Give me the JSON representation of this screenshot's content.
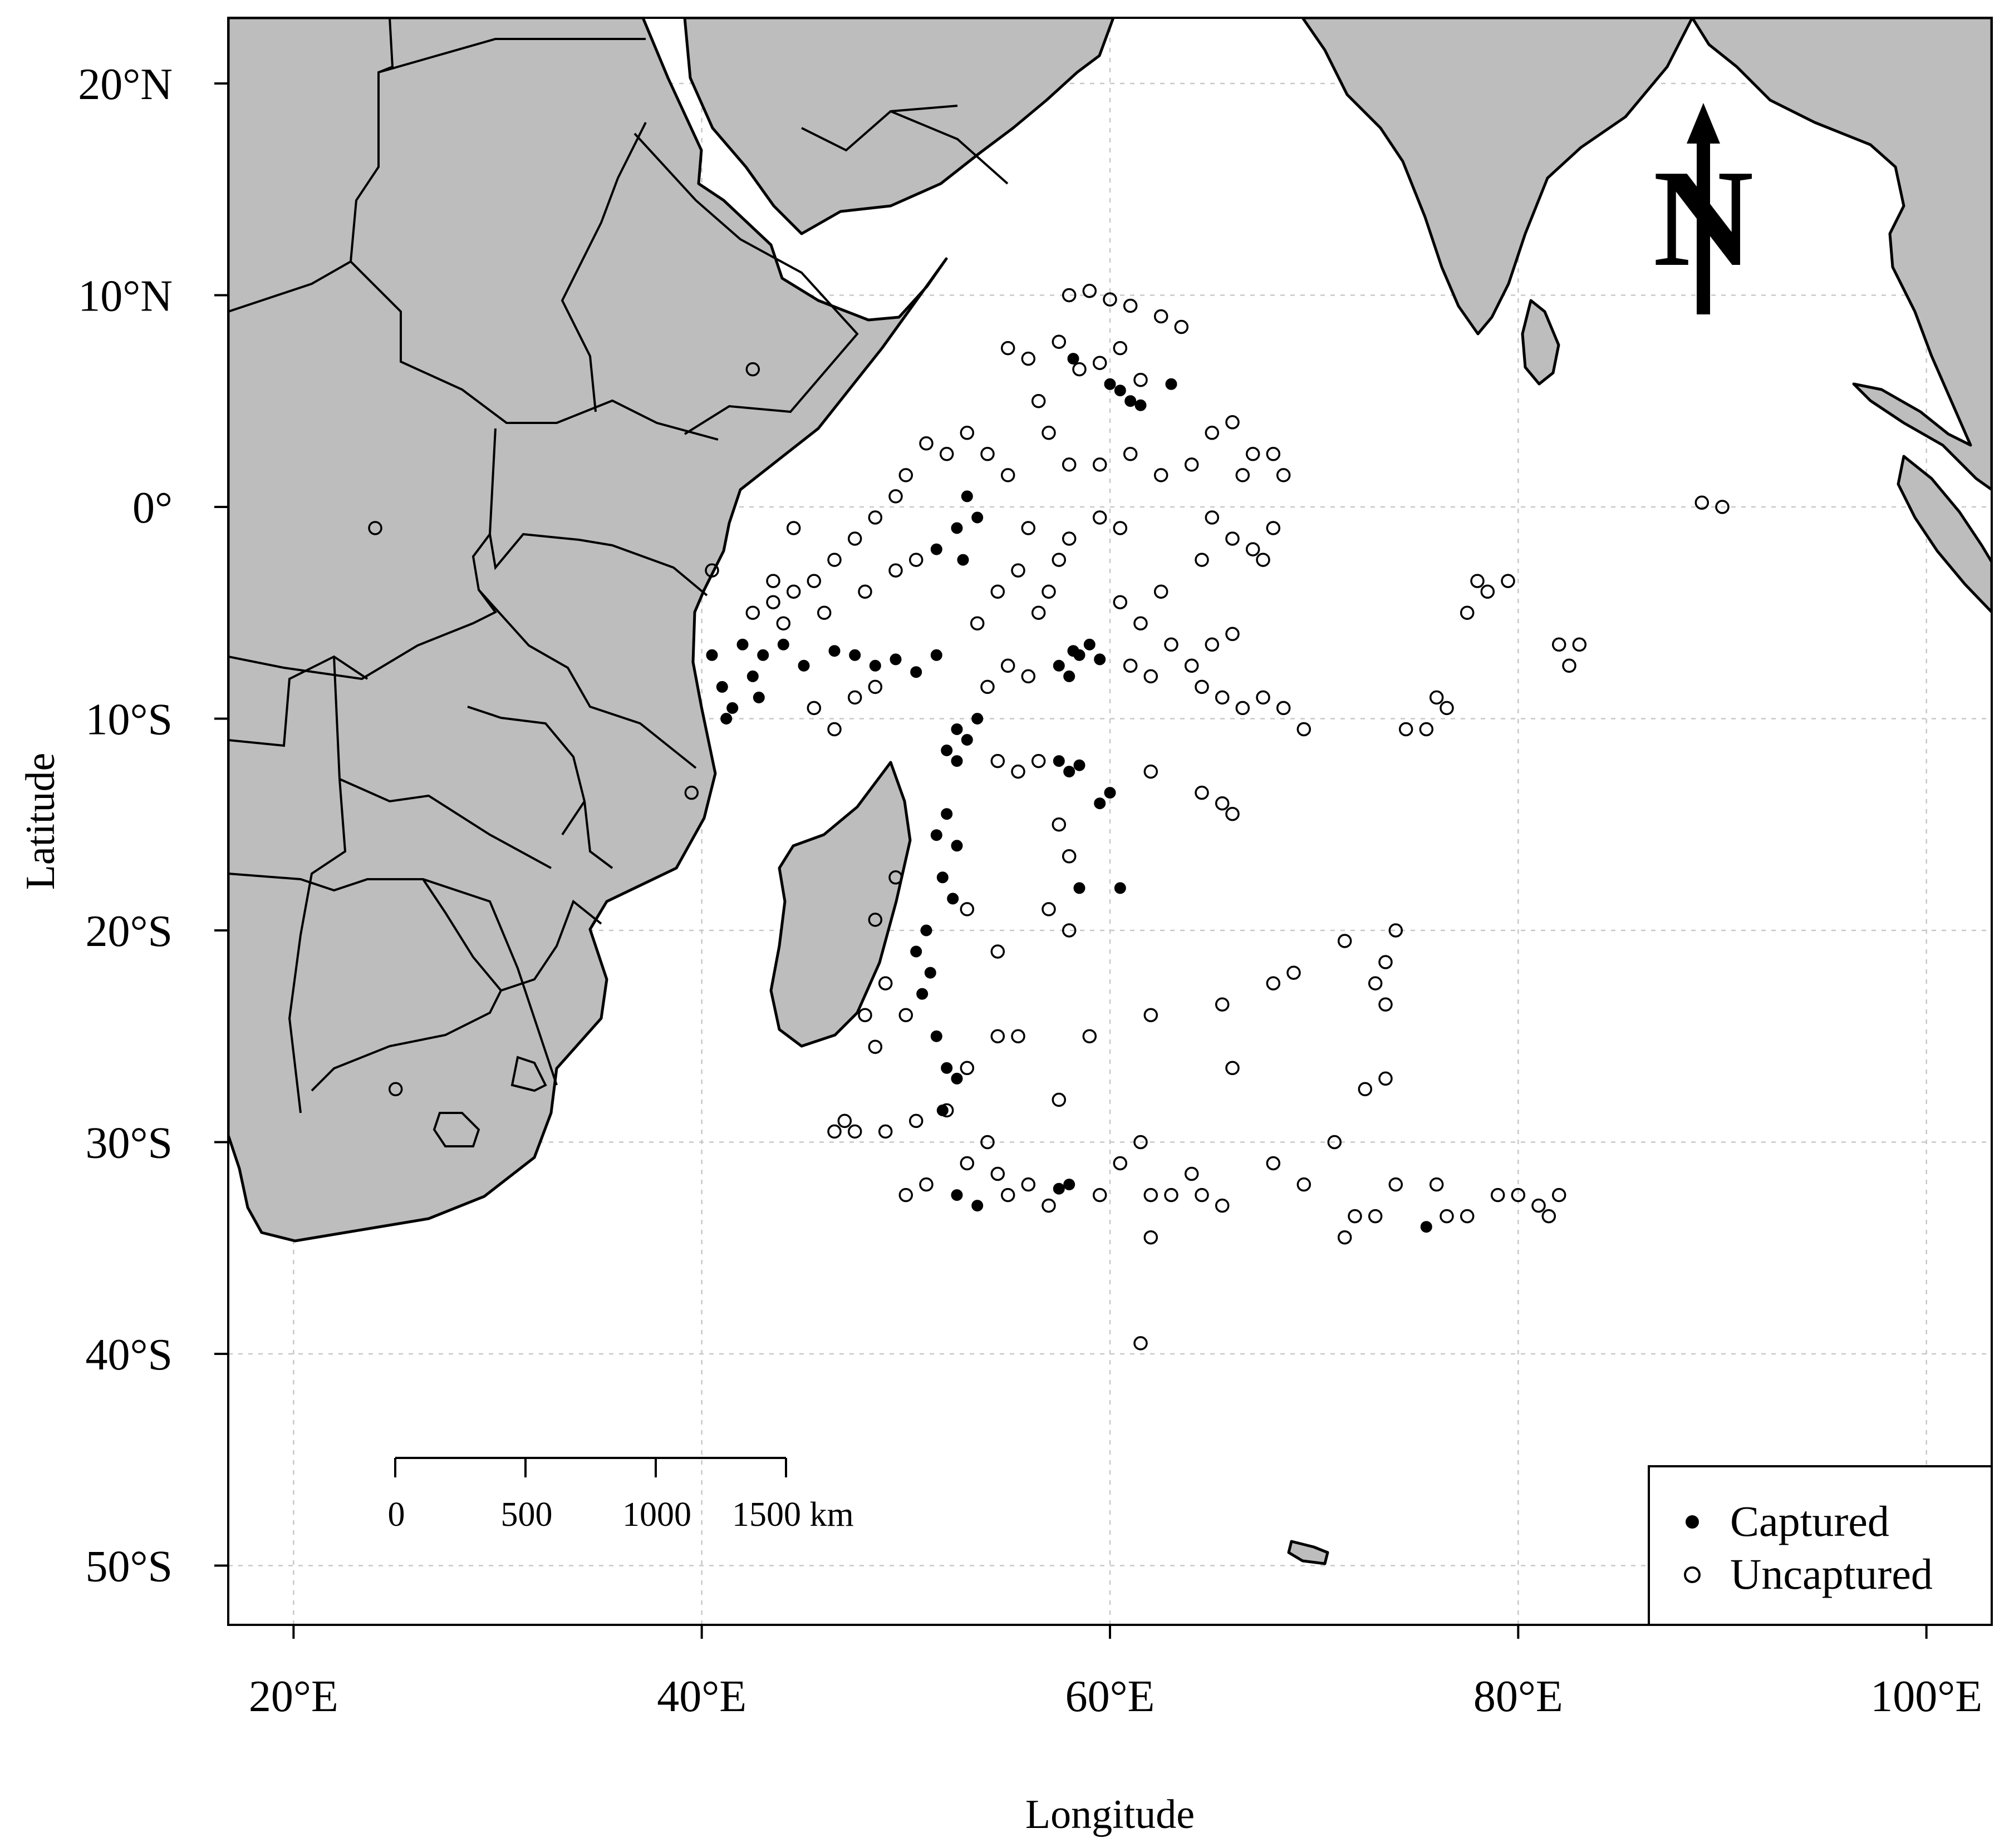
{
  "axes": {
    "x_label": "Longitude",
    "y_label": "Latitude",
    "x_ticks": [
      {
        "lon": 20,
        "label": "20°E"
      },
      {
        "lon": 40,
        "label": "40°E"
      },
      {
        "lon": 60,
        "label": "60°E"
      },
      {
        "lon": 80,
        "label": "80°E"
      },
      {
        "lon": 100,
        "label": "100°E"
      }
    ],
    "y_ticks": [
      {
        "lat": 20,
        "label": "20°N"
      },
      {
        "lat": 10,
        "label": "10°N"
      },
      {
        "lat": 0,
        "label": "0°"
      },
      {
        "lat": -10,
        "label": "10°S"
      },
      {
        "lat": -20,
        "label": "20°S"
      },
      {
        "lat": -30,
        "label": "30°S"
      },
      {
        "lat": -40,
        "label": "40°S"
      },
      {
        "lat": -50,
        "label": "50°S"
      }
    ],
    "lon_range": [
      16.8,
      103.2
    ],
    "lat_range": [
      -52.8,
      23.1
    ]
  },
  "legend": {
    "captured": "Captured",
    "uncaptured": "Uncaptured",
    "placement": "bottom-right"
  },
  "scale_bar": {
    "ticks": [
      "0",
      "500",
      "1000",
      "1500 km"
    ]
  },
  "north_arrow": {
    "label": "N",
    "icon": "north-arrow-icon"
  },
  "colors": {
    "land": "#bdbdbd",
    "ocean": "#ffffff",
    "points": "#000000"
  },
  "chart_data": {
    "type": "scatter",
    "title": "",
    "xlabel": "Longitude",
    "ylabel": "Latitude",
    "xlim": [
      16.8,
      103.2
    ],
    "ylim": [
      -52.8,
      23.1
    ],
    "grid": true,
    "legend_position": "bottom-right",
    "series": [
      {
        "name": "Captured",
        "marker": "filled-circle",
        "points": [
          [
            40.5,
            -7.0
          ],
          [
            41.0,
            -8.5
          ],
          [
            41.5,
            -9.5
          ],
          [
            42.0,
            -6.5
          ],
          [
            42.5,
            -8.0
          ],
          [
            43.0,
            -7.0
          ],
          [
            41.2,
            -10.0
          ],
          [
            42.8,
            -9.0
          ],
          [
            44.0,
            -6.5
          ],
          [
            45.0,
            -7.5
          ],
          [
            46.5,
            -6.8
          ],
          [
            47.5,
            -7.0
          ],
          [
            48.5,
            -7.5
          ],
          [
            49.5,
            -7.2
          ],
          [
            50.5,
            -7.8
          ],
          [
            51.5,
            -7.0
          ],
          [
            52.5,
            -1.0
          ],
          [
            53.0,
            0.5
          ],
          [
            52.8,
            -2.5
          ],
          [
            53.5,
            -0.5
          ],
          [
            51.5,
            -2.0
          ],
          [
            52.5,
            -10.5
          ],
          [
            53.0,
            -11.0
          ],
          [
            52.0,
            -11.5
          ],
          [
            53.5,
            -10.0
          ],
          [
            52.5,
            -12.0
          ],
          [
            52.0,
            -14.5
          ],
          [
            51.5,
            -15.5
          ],
          [
            52.5,
            -16.0
          ],
          [
            51.8,
            -17.5
          ],
          [
            52.3,
            -18.5
          ],
          [
            51.0,
            -20.0
          ],
          [
            50.5,
            -21.0
          ],
          [
            51.2,
            -22.0
          ],
          [
            50.8,
            -23.0
          ],
          [
            51.5,
            -25.0
          ],
          [
            52.0,
            -26.5
          ],
          [
            52.5,
            -27.0
          ],
          [
            51.8,
            -28.5
          ],
          [
            52.5,
            -32.5
          ],
          [
            53.5,
            -33.0
          ],
          [
            57.5,
            -7.5
          ],
          [
            58.0,
            -8.0
          ],
          [
            58.5,
            -7.0
          ],
          [
            59.0,
            -6.5
          ],
          [
            59.5,
            -7.2
          ],
          [
            58.2,
            -6.8
          ],
          [
            60.5,
            5.5
          ],
          [
            61.0,
            5.0
          ],
          [
            60.0,
            5.8
          ],
          [
            61.5,
            4.8
          ],
          [
            63.0,
            5.8
          ],
          [
            58.2,
            7.0
          ],
          [
            58.0,
            -12.5
          ],
          [
            57.5,
            -12.0
          ],
          [
            58.5,
            -12.2
          ],
          [
            59.5,
            -14.0
          ],
          [
            60.0,
            -13.5
          ],
          [
            58.5,
            -18.0
          ],
          [
            60.5,
            -18.0
          ],
          [
            58.0,
            -32.0
          ],
          [
            57.5,
            -32.2
          ],
          [
            75.5,
            -34.0
          ]
        ]
      },
      {
        "name": "Uncaptured",
        "marker": "open-circle",
        "points": [
          [
            58.0,
            10.0
          ],
          [
            59.0,
            10.2
          ],
          [
            60.0,
            9.8
          ],
          [
            61.0,
            9.5
          ],
          [
            62.5,
            9.0
          ],
          [
            63.5,
            8.5
          ],
          [
            60.5,
            7.5
          ],
          [
            58.5,
            6.5
          ],
          [
            56.0,
            7.0
          ],
          [
            55.0,
            7.5
          ],
          [
            57.5,
            7.8
          ],
          [
            59.5,
            6.8
          ],
          [
            61.5,
            6.0
          ],
          [
            56.5,
            5.0
          ],
          [
            57.0,
            3.5
          ],
          [
            58.0,
            2.0
          ],
          [
            59.5,
            2.0
          ],
          [
            61.0,
            2.5
          ],
          [
            62.5,
            1.5
          ],
          [
            64.0,
            2.0
          ],
          [
            65.0,
            3.5
          ],
          [
            66.0,
            4.0
          ],
          [
            67.0,
            2.5
          ],
          [
            68.0,
            2.5
          ],
          [
            68.5,
            1.5
          ],
          [
            66.5,
            1.5
          ],
          [
            65.0,
            -0.5
          ],
          [
            66.0,
            -1.5
          ],
          [
            67.0,
            -2.0
          ],
          [
            68.0,
            -1.0
          ],
          [
            67.5,
            -2.5
          ],
          [
            64.5,
            -2.5
          ],
          [
            60.5,
            -1.0
          ],
          [
            59.5,
            -0.5
          ],
          [
            58.0,
            -1.5
          ],
          [
            57.5,
            -2.5
          ],
          [
            56.0,
            -1.0
          ],
          [
            55.0,
            1.5
          ],
          [
            54.0,
            2.5
          ],
          [
            53.0,
            3.5
          ],
          [
            52.0,
            2.5
          ],
          [
            51.0,
            3.0
          ],
          [
            50.0,
            1.5
          ],
          [
            49.5,
            0.5
          ],
          [
            48.5,
            -0.5
          ],
          [
            47.5,
            -1.5
          ],
          [
            46.5,
            -2.5
          ],
          [
            45.5,
            -3.5
          ],
          [
            44.5,
            -4.0
          ],
          [
            43.5,
            -4.5
          ],
          [
            42.5,
            -5.0
          ],
          [
            44.0,
            -5.5
          ],
          [
            46.0,
            -5.0
          ],
          [
            48.0,
            -4.0
          ],
          [
            49.5,
            -3.0
          ],
          [
            50.5,
            -2.5
          ],
          [
            55.5,
            -3.0
          ],
          [
            54.5,
            -4.0
          ],
          [
            53.5,
            -5.5
          ],
          [
            56.5,
            -5.0
          ],
          [
            57.0,
            -4.0
          ],
          [
            60.5,
            -4.5
          ],
          [
            61.5,
            -5.5
          ],
          [
            62.5,
            -4.0
          ],
          [
            63.0,
            -6.5
          ],
          [
            64.0,
            -7.5
          ],
          [
            65.0,
            -6.5
          ],
          [
            66.0,
            -6.0
          ],
          [
            64.5,
            -8.5
          ],
          [
            65.5,
            -9.0
          ],
          [
            66.5,
            -9.5
          ],
          [
            67.5,
            -9.0
          ],
          [
            68.5,
            -9.5
          ],
          [
            69.5,
            -10.5
          ],
          [
            45.5,
            -9.5
          ],
          [
            46.5,
            -10.5
          ],
          [
            47.5,
            -9.0
          ],
          [
            48.5,
            -8.5
          ],
          [
            54.0,
            -8.5
          ],
          [
            55.0,
            -7.5
          ],
          [
            56.0,
            -8.0
          ],
          [
            61.0,
            -7.5
          ],
          [
            62.0,
            -8.0
          ],
          [
            54.5,
            -12.0
          ],
          [
            55.5,
            -12.5
          ],
          [
            56.5,
            -12.0
          ],
          [
            62.0,
            -12.5
          ],
          [
            64.5,
            -13.5
          ],
          [
            65.5,
            -14.0
          ],
          [
            66.0,
            -14.5
          ],
          [
            57.5,
            -15.0
          ],
          [
            58.0,
            -16.5
          ],
          [
            57.0,
            -19.0
          ],
          [
            58.0,
            -20.0
          ],
          [
            53.0,
            -19.0
          ],
          [
            54.5,
            -21.0
          ],
          [
            49.5,
            -17.5
          ],
          [
            48.5,
            -19.5
          ],
          [
            49.0,
            -22.5
          ],
          [
            48.0,
            -24.0
          ],
          [
            48.5,
            -25.5
          ],
          [
            50.0,
            -24.0
          ],
          [
            54.5,
            -25.0
          ],
          [
            55.5,
            -25.0
          ],
          [
            59.0,
            -25.0
          ],
          [
            62.0,
            -24.0
          ],
          [
            65.5,
            -23.5
          ],
          [
            68.0,
            -22.5
          ],
          [
            69.0,
            -22.0
          ],
          [
            71.5,
            -20.5
          ],
          [
            74.0,
            -20.0
          ],
          [
            73.5,
            -21.5
          ],
          [
            73.0,
            -22.5
          ],
          [
            73.5,
            -23.5
          ],
          [
            66.0,
            -26.5
          ],
          [
            57.5,
            -28.0
          ],
          [
            53.0,
            -26.5
          ],
          [
            52.0,
            -28.5
          ],
          [
            50.5,
            -29.0
          ],
          [
            49.0,
            -29.5
          ],
          [
            47.0,
            -29.0
          ],
          [
            46.5,
            -29.5
          ],
          [
            47.5,
            -29.5
          ],
          [
            54.0,
            -30.0
          ],
          [
            53.0,
            -31.0
          ],
          [
            51.0,
            -32.0
          ],
          [
            50.0,
            -32.5
          ],
          [
            54.5,
            -31.5
          ],
          [
            55.0,
            -32.5
          ],
          [
            56.0,
            -32.0
          ],
          [
            57.0,
            -33.0
          ],
          [
            59.5,
            -32.5
          ],
          [
            60.5,
            -31.0
          ],
          [
            61.5,
            -30.0
          ],
          [
            62.0,
            -32.5
          ],
          [
            63.0,
            -32.5
          ],
          [
            64.0,
            -31.5
          ],
          [
            64.5,
            -32.5
          ],
          [
            65.5,
            -33.0
          ],
          [
            68.0,
            -31.0
          ],
          [
            69.5,
            -32.0
          ],
          [
            71.0,
            -30.0
          ],
          [
            72.0,
            -33.5
          ],
          [
            71.5,
            -34.5
          ],
          [
            73.0,
            -33.5
          ],
          [
            74.0,
            -32.0
          ],
          [
            73.5,
            -27.0
          ],
          [
            72.5,
            -27.5
          ],
          [
            76.0,
            -32.0
          ],
          [
            76.5,
            -33.5
          ],
          [
            77.5,
            -33.5
          ],
          [
            79.0,
            -32.5
          ],
          [
            80.0,
            -32.5
          ],
          [
            81.0,
            -33.0
          ],
          [
            82.0,
            -32.5
          ],
          [
            81.5,
            -33.5
          ],
          [
            76.0,
            -9.0
          ],
          [
            76.5,
            -9.5
          ],
          [
            75.5,
            -10.5
          ],
          [
            74.5,
            -10.5
          ],
          [
            77.5,
            -5.0
          ],
          [
            78.5,
            -4.0
          ],
          [
            79.5,
            -3.5
          ],
          [
            78.0,
            -3.5
          ],
          [
            82.0,
            -6.5
          ],
          [
            83.0,
            -6.5
          ],
          [
            82.5,
            -7.5
          ],
          [
            89.0,
            0.2
          ],
          [
            90.0,
            0.0
          ],
          [
            62.0,
            -34.5
          ],
          [
            61.5,
            -39.5
          ],
          [
            24.0,
            -1.0
          ],
          [
            42.5,
            6.5
          ],
          [
            39.5,
            -13.5
          ],
          [
            25.0,
            -27.5
          ],
          [
            40.5,
            -3.0
          ],
          [
            44.5,
            -1.0
          ],
          [
            43.5,
            -3.5
          ]
        ]
      }
    ]
  }
}
